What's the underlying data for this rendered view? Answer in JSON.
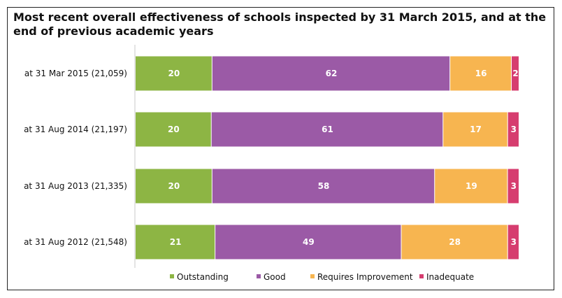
{
  "chart_data": {
    "type": "bar",
    "orientation": "horizontal",
    "stacked": true,
    "title": "Most recent overall effectiveness of schools inspected by 31 March 2015, and at the end of previous academic years",
    "categories": [
      "at 31 Mar 2015 (21,059)",
      "at 31 Aug 2014 (21,197)",
      "at 31 Aug 2013 (21,335)",
      "at 31 Aug 2012 (21,548)"
    ],
    "series": [
      {
        "name": "Outstanding",
        "color": "#8db544",
        "values": [
          20,
          20,
          20,
          21
        ]
      },
      {
        "name": "Good",
        "color": "#9b5aa6",
        "values": [
          62,
          61,
          58,
          49
        ]
      },
      {
        "name": "Requires Improvement",
        "color": "#f7b550",
        "values": [
          16,
          17,
          19,
          28
        ]
      },
      {
        "name": "Inadequate",
        "color": "#d63d6f",
        "values": [
          2,
          3,
          3,
          3
        ]
      }
    ],
    "xlim": [
      0,
      100
    ],
    "grid": false,
    "legend": "bottom"
  }
}
